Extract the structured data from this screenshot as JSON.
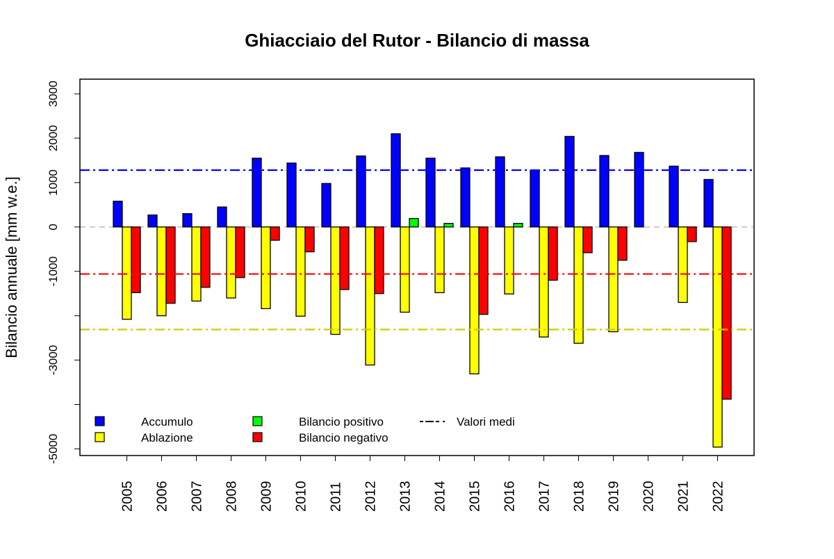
{
  "chart_data": {
    "type": "bar",
    "title": "Ghiacciaio del Rutor - Bilancio di massa",
    "xlabel": "",
    "ylabel": "Bilancio annuale [mm w.e.]",
    "ylim": [
      -5150,
      3330
    ],
    "yticks": [
      -5000,
      -4000,
      -3000,
      -2000,
      -1000,
      0,
      1000,
      2000,
      3000
    ],
    "ytick_labels": [
      "-5000",
      "",
      "-3000",
      "",
      "-1000",
      "0",
      "1000",
      "2000",
      "3000"
    ],
    "grid": false,
    "categories": [
      "2005",
      "2006",
      "2007",
      "2008",
      "2009",
      "2010",
      "2011",
      "2012",
      "2013",
      "2014",
      "2015",
      "2016",
      "2017",
      "2018",
      "2019",
      "2020",
      "2021",
      "2022"
    ],
    "series": [
      {
        "name": "Accumulo",
        "color": "#0000ff",
        "values": [
          580,
          270,
          300,
          450,
          1550,
          1440,
          980,
          1600,
          2100,
          1550,
          1330,
          1580,
          1280,
          2040,
          1610,
          1680,
          1370,
          1070
        ]
      },
      {
        "name": "Ablazione",
        "color": "#ffff00",
        "values": [
          -2080,
          -2000,
          -1670,
          -1600,
          -1840,
          -2010,
          -2420,
          -3110,
          -1920,
          -1480,
          -3310,
          -1510,
          -2480,
          -2620,
          -2360,
          null,
          -1700,
          -4960
        ]
      },
      {
        "name": "Bilancio",
        "color_positive": "#00ff00",
        "color_negative": "#ff0000",
        "values": [
          -1480,
          -1720,
          -1360,
          -1140,
          -300,
          -560,
          -1410,
          -1500,
          190,
          80,
          -1970,
          80,
          -1200,
          -580,
          -750,
          null,
          -330,
          -3880
        ]
      }
    ],
    "mean_lines": [
      {
        "series": "Accumulo",
        "value": 1280,
        "color": "#0000ff"
      },
      {
        "series": "Bilancio",
        "value": -1060,
        "color": "#ff0000"
      },
      {
        "series": "Ablazione",
        "value": -2310,
        "color": "#cccc00"
      }
    ],
    "zero_line_color": "#bebebe",
    "legend": {
      "placement": "bottom-left",
      "entries": [
        {
          "label": "Accumulo",
          "color": "#0000ff",
          "kind": "box"
        },
        {
          "label": "Ablazione",
          "color": "#ffff00",
          "kind": "box"
        },
        {
          "label": "Bilancio positivo",
          "color": "#00ff00",
          "kind": "box"
        },
        {
          "label": "Bilancio negativo",
          "color": "#ff0000",
          "kind": "box"
        },
        {
          "label": "Valori medi",
          "color": "#000000",
          "kind": "dash-dot-line"
        }
      ]
    }
  }
}
